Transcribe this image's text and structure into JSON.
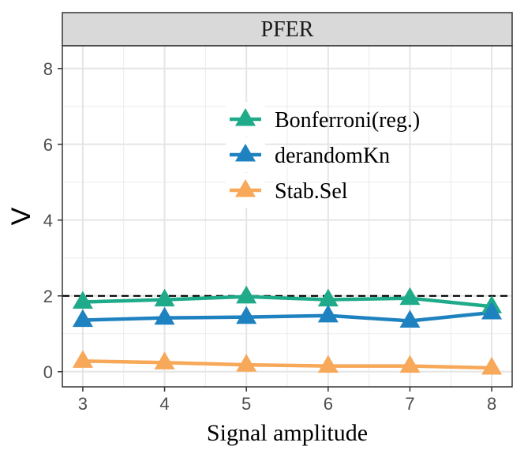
{
  "chart_data": {
    "type": "line",
    "facet_title": "PFER",
    "xlabel": "Signal amplitude",
    "ylabel": "V",
    "x": [
      3,
      4,
      5,
      6,
      7,
      8
    ],
    "xlim": [
      2.75,
      8.25
    ],
    "ylim": [
      -0.4,
      8.6
    ],
    "x_ticks": [
      3,
      4,
      5,
      6,
      7,
      8
    ],
    "y_ticks": [
      0,
      2,
      4,
      6,
      8
    ],
    "reference_line": {
      "y": 2,
      "style": "dashed"
    },
    "series": [
      {
        "name": "Bonferroni(reg.)",
        "color": "#1fab89",
        "marker": "triangle",
        "values": [
          1.84,
          1.9,
          1.98,
          1.9,
          1.94,
          1.72
        ]
      },
      {
        "name": "derandomKn",
        "color": "#1f82c0",
        "marker": "triangle",
        "values": [
          1.36,
          1.42,
          1.44,
          1.48,
          1.34,
          1.56
        ]
      },
      {
        "name": "Stab.Sel",
        "color": "#f7a859",
        "marker": "triangle",
        "values": [
          0.28,
          0.24,
          0.18,
          0.15,
          0.15,
          0.1
        ]
      }
    ],
    "legend_position": "upper-middle",
    "grid": true
  }
}
